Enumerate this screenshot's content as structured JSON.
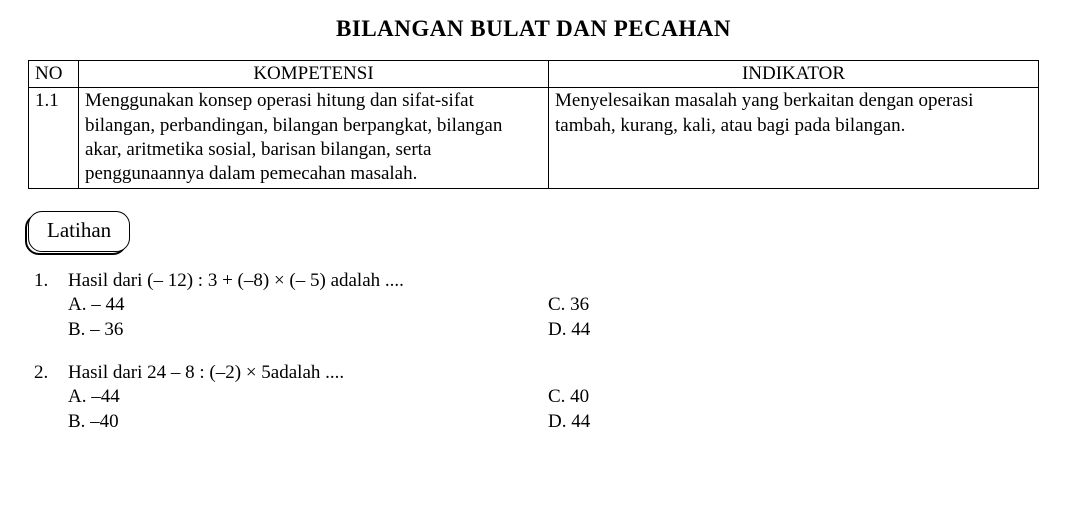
{
  "title": "BILANGAN BULAT DAN PECAHAN",
  "table": {
    "headers": {
      "no": "NO",
      "kompetensi": "KOMPETENSI",
      "indikator": "INDIKATOR"
    },
    "row": {
      "no": "1.1",
      "kompetensi": "Menggunakan konsep operasi hitung dan sifat-sifat bilangan, perbandingan, bilangan berpangkat, bilangan akar, aritmetika sosial, barisan bilangan, serta penggunaannya dalam pemecahan masalah.",
      "indikator": "Menyelesaikan masalah yang berkaitan dengan operasi tambah, kurang, kali, atau bagi pada bilangan."
    }
  },
  "latihan_label": "Latihan",
  "questions": [
    {
      "num": "1.",
      "stem": "Hasil dari  (– 12) : 3 + (–8) × (– 5) adalah ....",
      "A": "A. – 44",
      "B": "B. – 36",
      "C": "C. 36",
      "D": "D. 44"
    },
    {
      "num": "2.",
      "stem": "Hasil dari  24 – 8 : (–2) × 5adalah ....",
      "A": "A. –44",
      "B": "B. –40",
      "C": "C. 40",
      "D": "D. 44"
    }
  ]
}
